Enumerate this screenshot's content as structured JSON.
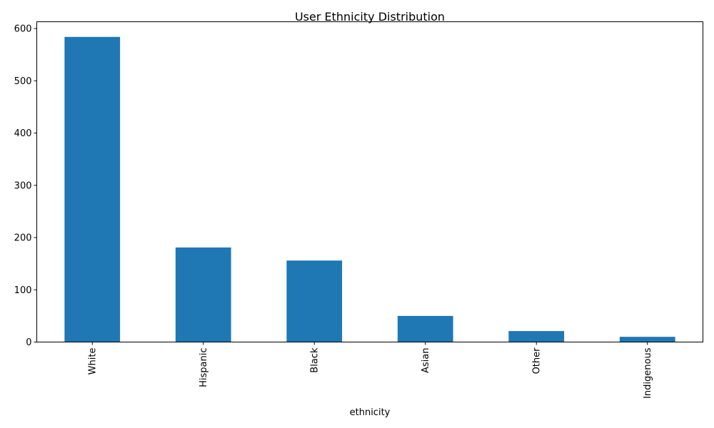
{
  "chart_data": {
    "type": "bar",
    "title": "User Ethnicity Distribution",
    "xlabel": "ethnicity",
    "ylabel": "",
    "categories": [
      "White",
      "Hispanic",
      "Black",
      "Asian",
      "Other",
      "Indigenous"
    ],
    "values": [
      584,
      181,
      156,
      50,
      21,
      10
    ],
    "ylim": [
      0,
      613
    ],
    "yticks": [
      0,
      100,
      200,
      300,
      400,
      500,
      600
    ],
    "bar_color": "#1f77b4",
    "grid": false,
    "legend": false
  }
}
